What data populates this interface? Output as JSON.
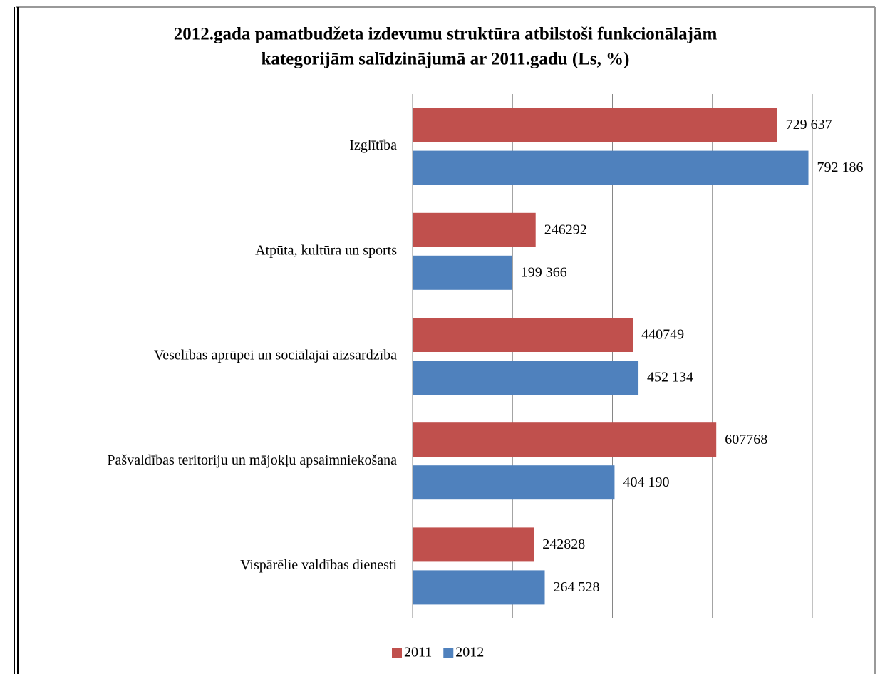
{
  "chart_data": {
    "type": "barh",
    "title": [
      "2012.gada pamatbudžeta izdevumu struktūra atbilstoši funkcionālajām",
      "kategorijām salīdzinājumā ar 2011.gadu (Ls, %)"
    ],
    "categories": [
      "Izglītība",
      "Atpūta, kultūra un sports",
      "Veselības aprūpei un sociālajai aizsardzība",
      "Pašvaldības teritoriju un mājokļu apsaimniekošana",
      "Vispārēlie valdības dienesti"
    ],
    "series": [
      {
        "name": "2011",
        "color": "#c0504d",
        "values": [
          729637,
          246292,
          440749,
          607768,
          242828
        ],
        "value_labels": [
          "729 637",
          "246292",
          "440749",
          "607768",
          "242828"
        ]
      },
      {
        "name": "2012",
        "color": "#4f81bd",
        "values": [
          792186,
          199366,
          452134,
          404190,
          264528
        ],
        "value_labels": [
          "792 186",
          "199 366",
          "452 134",
          "404 190",
          "264 528"
        ]
      }
    ],
    "xlim": [
      0,
      800000
    ],
    "xticks": [
      0,
      200000,
      400000,
      600000,
      800000
    ],
    "grid": true,
    "legend": "bottom"
  }
}
